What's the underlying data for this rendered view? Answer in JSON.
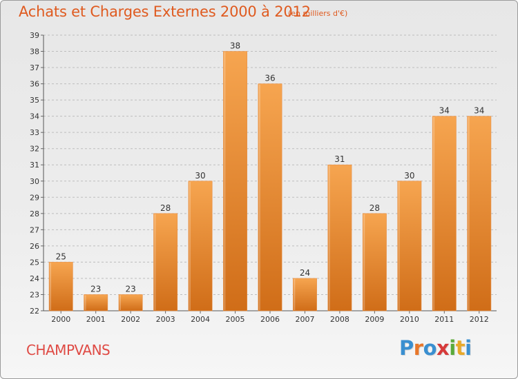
{
  "header": {
    "title": "Achats et Charges Externes 2000 à 2012",
    "unit": "(en milliers d'€)"
  },
  "footer": {
    "town": "CHAMPVANS",
    "logo": {
      "letters": [
        "P",
        "r",
        "o",
        "x",
        "i",
        "t",
        "i"
      ]
    }
  },
  "colors": {
    "bar_light": "#f6a550",
    "bar_dark": "#d06d18",
    "title": "#df5a1f",
    "town": "#df4a44",
    "logo": [
      "#3a8fd0",
      "#e8772a",
      "#3a8fd0",
      "#d63a3a",
      "#5aaa3a",
      "#e8a92a",
      "#3a8fd0"
    ]
  },
  "chart_data": {
    "type": "bar",
    "title": "Achats et Charges Externes 2000 à 2012",
    "subtitle": "(en milliers d'€)",
    "categories": [
      "2000",
      "2001",
      "2002",
      "2003",
      "2004",
      "2005",
      "2006",
      "2007",
      "2008",
      "2009",
      "2010",
      "2011",
      "2012"
    ],
    "values": [
      25,
      23,
      23,
      28,
      30,
      38,
      36,
      24,
      31,
      28,
      30,
      34,
      34
    ],
    "ylim": [
      22,
      39
    ],
    "yticks": [
      22,
      23,
      24,
      25,
      26,
      27,
      28,
      29,
      30,
      31,
      32,
      33,
      34,
      35,
      36,
      37,
      38,
      39
    ],
    "grid": "horizontal-dashed"
  }
}
